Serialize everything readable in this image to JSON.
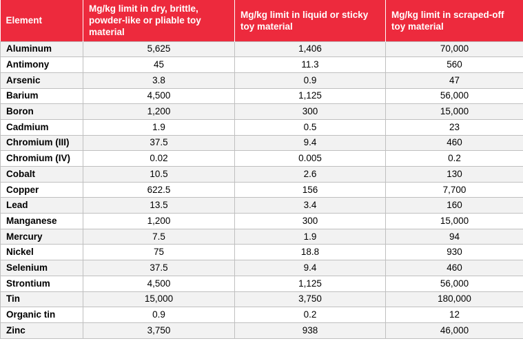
{
  "colors": {
    "header_bg": "#ed2a3d",
    "header_text": "#ffffff",
    "row_odd": "#f2f2f2",
    "row_even": "#ffffff",
    "grid": "#bfbfbf"
  },
  "table": {
    "headers": [
      "Element",
      "Mg/kg limit in dry, brittle, powder-like or pliable toy material",
      "Mg/kg limit in liquid or sticky toy material",
      "Mg/kg limit in scraped-off toy material"
    ],
    "rows": [
      [
        "Aluminum",
        "5,625",
        "1,406",
        "70,000"
      ],
      [
        "Antimony",
        "45",
        "11.3",
        "560"
      ],
      [
        "Arsenic",
        "3.8",
        "0.9",
        "47"
      ],
      [
        "Barium",
        "4,500",
        "1,125",
        "56,000"
      ],
      [
        "Boron",
        "1,200",
        "300",
        "15,000"
      ],
      [
        "Cadmium",
        "1.9",
        "0.5",
        "23"
      ],
      [
        "Chromium (III)",
        "37.5",
        "9.4",
        "460"
      ],
      [
        "Chromium (IV)",
        "0.02",
        "0.005",
        "0.2"
      ],
      [
        "Cobalt",
        "10.5",
        "2.6",
        "130"
      ],
      [
        "Copper",
        "622.5",
        "156",
        "7,700"
      ],
      [
        "Lead",
        "13.5",
        "3.4",
        "160"
      ],
      [
        "Manganese",
        "1,200",
        "300",
        "15,000"
      ],
      [
        "Mercury",
        "7.5",
        "1.9",
        "94"
      ],
      [
        "Nickel",
        "75",
        "18.8",
        "930"
      ],
      [
        "Selenium",
        "37.5",
        "9.4",
        "460"
      ],
      [
        "Strontium",
        "4,500",
        "1,125",
        "56,000"
      ],
      [
        "Tin",
        "15,000",
        "3,750",
        "180,000"
      ],
      [
        "Organic tin",
        "0.9",
        "0.2",
        "12"
      ],
      [
        "Zinc",
        "3,750",
        "938",
        "46,000"
      ]
    ]
  }
}
